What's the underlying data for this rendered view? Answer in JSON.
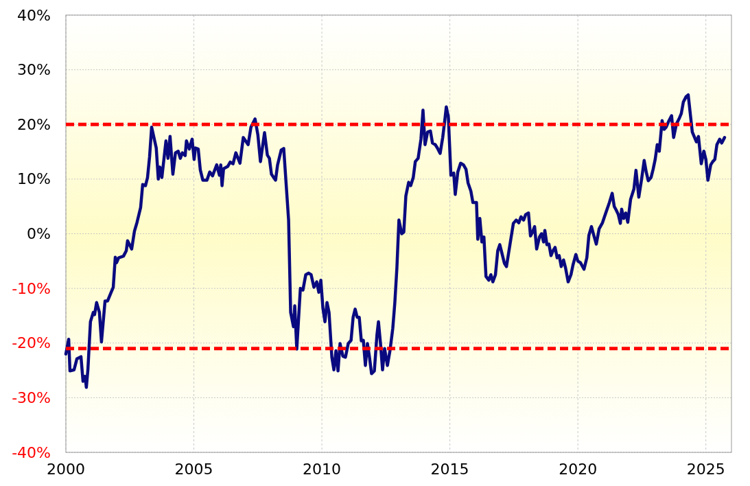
{
  "chart_data": {
    "type": "line",
    "xlim": [
      2000,
      2026
    ],
    "xticks": [
      2000,
      2005,
      2010,
      2015,
      2020,
      2025
    ],
    "ylim": [
      -40,
      40
    ],
    "yticks": [
      {
        "value": -40,
        "label": "-40%"
      },
      {
        "value": -30,
        "label": "-30%"
      },
      {
        "value": -20,
        "label": "-20%"
      },
      {
        "value": -10,
        "label": "-10%"
      },
      {
        "value": 0,
        "label": "0%"
      },
      {
        "value": 10,
        "label": "10%"
      },
      {
        "value": 20,
        "label": "20%"
      },
      {
        "value": 30,
        "label": "30%"
      },
      {
        "value": 40,
        "label": "40%"
      }
    ],
    "grid": true,
    "line_style": "solid",
    "ref_lines": [
      {
        "axis": "y",
        "value": 20,
        "color": "#ff0000",
        "line_style": "dashed"
      },
      {
        "axis": "y",
        "value": -21,
        "color": "#ff0000",
        "line_style": "dashed"
      }
    ],
    "series": [
      {
        "color": "#0a0a80",
        "x": [
          2000.0,
          2000.11,
          2000.16,
          2000.32,
          2000.43,
          2000.59,
          2000.67,
          2000.75,
          2000.8,
          2000.86,
          2000.96,
          2001.07,
          2001.12,
          2001.2,
          2001.31,
          2001.39,
          2001.53,
          2001.63,
          2001.77,
          2001.85,
          2001.93,
          2001.98,
          2002.06,
          2002.25,
          2002.36,
          2002.41,
          2002.57,
          2002.68,
          2002.78,
          2002.92,
          2003.0,
          2003.11,
          2003.19,
          2003.27,
          2003.35,
          2003.53,
          2003.61,
          2003.67,
          2003.75,
          2003.91,
          2003.99,
          2004.07,
          2004.18,
          2004.28,
          2004.39,
          2004.47,
          2004.55,
          2004.66,
          2004.71,
          2004.82,
          2004.93,
          2005.01,
          2005.06,
          2005.17,
          2005.25,
          2005.35,
          2005.51,
          2005.62,
          2005.73,
          2005.89,
          2006.0,
          2006.05,
          2006.1,
          2006.16,
          2006.32,
          2006.42,
          2006.53,
          2006.64,
          2006.8,
          2006.93,
          2007.12,
          2007.23,
          2007.39,
          2007.5,
          2007.6,
          2007.76,
          2007.87,
          2007.95,
          2008.03,
          2008.19,
          2008.27,
          2008.41,
          2008.51,
          2008.7,
          2008.78,
          2008.89,
          2008.94,
          2009.02,
          2009.16,
          2009.26,
          2009.37,
          2009.48,
          2009.58,
          2009.69,
          2009.8,
          2009.88,
          2009.96,
          2010.04,
          2010.12,
          2010.2,
          2010.28,
          2010.39,
          2010.47,
          2010.55,
          2010.63,
          2010.71,
          2010.82,
          2010.92,
          2011.03,
          2011.14,
          2011.22,
          2011.3,
          2011.38,
          2011.46,
          2011.54,
          2011.62,
          2011.7,
          2011.78,
          2011.86,
          2011.94,
          2012.05,
          2012.15,
          2012.21,
          2012.29,
          2012.37,
          2012.45,
          2012.56,
          2012.66,
          2012.77,
          2012.85,
          2012.93,
          2013.01,
          2013.12,
          2013.2,
          2013.28,
          2013.39,
          2013.47,
          2013.57,
          2013.65,
          2013.76,
          2013.87,
          2013.95,
          2014.03,
          2014.13,
          2014.24,
          2014.32,
          2014.43,
          2014.51,
          2014.62,
          2014.72,
          2014.8,
          2014.86,
          2014.94,
          2014.99,
          2015.04,
          2015.15,
          2015.21,
          2015.31,
          2015.42,
          2015.53,
          2015.63,
          2015.71,
          2015.82,
          2015.9,
          2016.04,
          2016.09,
          2016.17,
          2016.25,
          2016.33,
          2016.41,
          2016.52,
          2016.6,
          2016.68,
          2016.78,
          2016.87,
          2016.95,
          2017.03,
          2017.13,
          2017.21,
          2017.35,
          2017.48,
          2017.59,
          2017.69,
          2017.78,
          2017.88,
          2017.96,
          2018.07,
          2018.15,
          2018.23,
          2018.31,
          2018.39,
          2018.5,
          2018.58,
          2018.66,
          2018.71,
          2018.79,
          2018.87,
          2018.95,
          2019.03,
          2019.11,
          2019.19,
          2019.27,
          2019.35,
          2019.44,
          2019.52,
          2019.62,
          2019.73,
          2019.81,
          2019.92,
          2020.0,
          2020.1,
          2020.24,
          2020.35,
          2020.43,
          2020.53,
          2020.64,
          2020.72,
          2020.83,
          2020.96,
          2021.09,
          2021.23,
          2021.34,
          2021.42,
          2021.5,
          2021.58,
          2021.66,
          2021.71,
          2021.79,
          2021.87,
          2021.95,
          2022.06,
          2022.19,
          2022.27,
          2022.38,
          2022.49,
          2022.59,
          2022.67,
          2022.75,
          2022.86,
          2022.94,
          2023.02,
          2023.1,
          2023.18,
          2023.29,
          2023.37,
          2023.45,
          2023.56,
          2023.66,
          2023.74,
          2023.85,
          2023.96,
          2024.04,
          2024.12,
          2024.23,
          2024.31,
          2024.47,
          2024.63,
          2024.71,
          2024.82,
          2024.92,
          2025.0,
          2025.08,
          2025.19,
          2025.27,
          2025.35,
          2025.43,
          2025.54,
          2025.62,
          2025.73
        ],
        "values": [
          -22.0,
          -19.3,
          -25.1,
          -24.9,
          -22.9,
          -22.5,
          -27.0,
          -26.1,
          -28.1,
          -24.9,
          -16.1,
          -14.4,
          -14.8,
          -12.6,
          -14.4,
          -19.8,
          -12.3,
          -12.3,
          -10.7,
          -9.8,
          -4.3,
          -5.3,
          -4.4,
          -4.1,
          -3.1,
          -1.3,
          -2.8,
          0.5,
          2.1,
          4.8,
          9.0,
          8.8,
          10.3,
          14.1,
          19.5,
          15.7,
          10.0,
          12.2,
          10.3,
          17.0,
          13.8,
          17.8,
          10.9,
          14.8,
          15.1,
          13.8,
          14.8,
          14.3,
          17.0,
          15.5,
          17.3,
          13.6,
          15.7,
          15.5,
          11.7,
          9.8,
          9.8,
          11.3,
          10.6,
          12.6,
          10.7,
          12.6,
          8.8,
          11.9,
          12.3,
          13.1,
          12.8,
          14.8,
          12.9,
          17.6,
          16.3,
          19.5,
          21.0,
          18.1,
          13.2,
          18.5,
          14.4,
          13.8,
          10.9,
          9.8,
          12.6,
          15.3,
          15.6,
          2.5,
          -14.4,
          -17.0,
          -13.2,
          -21.1,
          -10.0,
          -10.3,
          -7.5,
          -7.2,
          -7.5,
          -9.8,
          -8.8,
          -10.7,
          -8.5,
          -13.6,
          -16.1,
          -12.6,
          -14.4,
          -22.6,
          -24.9,
          -21.4,
          -25.1,
          -20.1,
          -22.4,
          -22.6,
          -20.1,
          -19.5,
          -15.3,
          -13.8,
          -15.3,
          -15.3,
          -19.6,
          -19.5,
          -24.1,
          -20.1,
          -22.6,
          -25.6,
          -25.1,
          -18.6,
          -16.1,
          -20.1,
          -24.9,
          -21.0,
          -24.1,
          -21.4,
          -17.3,
          -12.6,
          -6.3,
          2.5,
          0,
          0.3,
          6.9,
          9.4,
          8.8,
          10.3,
          13.2,
          13.8,
          17.3,
          22.6,
          16.3,
          18.6,
          18.8,
          16.6,
          16.3,
          15.7,
          14.7,
          17.6,
          20.7,
          23.2,
          21.4,
          16.1,
          10.7,
          11.1,
          7.2,
          11.3,
          12.9,
          12.6,
          11.8,
          9.3,
          7.8,
          5.7,
          5.7,
          -1.0,
          2.8,
          -1.5,
          -0.6,
          -7.8,
          -8.5,
          -7.5,
          -8.8,
          -7.5,
          -3.1,
          -2.0,
          -3.5,
          -5.4,
          -6.0,
          -1.9,
          1.9,
          2.5,
          2.0,
          3.1,
          2.5,
          3.5,
          3.8,
          -0.4,
          0.3,
          1.3,
          -2.8,
          -0.6,
          0,
          -1.5,
          0.6,
          -2.0,
          -1.9,
          -4.0,
          -3.1,
          -2.5,
          -4.4,
          -4.0,
          -6.0,
          -4.8,
          -6.3,
          -8.8,
          -7.5,
          -5.7,
          -3.8,
          -5.0,
          -5.3,
          -6.5,
          -4.4,
          -0.3,
          1.3,
          -0.6,
          -1.9,
          0.9,
          2.0,
          3.8,
          5.7,
          7.4,
          5.0,
          4.3,
          3.5,
          1.9,
          4.5,
          2.8,
          3.8,
          2.1,
          6.3,
          8.2,
          11.6,
          6.7,
          10.0,
          13.4,
          11.3,
          9.7,
          10.3,
          11.8,
          13.6,
          16.3,
          15.1,
          20.7,
          19.1,
          19.5,
          20.7,
          21.6,
          17.6,
          20.1,
          21.1,
          22.0,
          24.1,
          25.1,
          25.4,
          18.6,
          16.8,
          17.8,
          12.8,
          15.1,
          13.6,
          9.8,
          12.6,
          13.2,
          13.6,
          16.3,
          17.3,
          16.6,
          17.6
        ]
      }
    ]
  }
}
